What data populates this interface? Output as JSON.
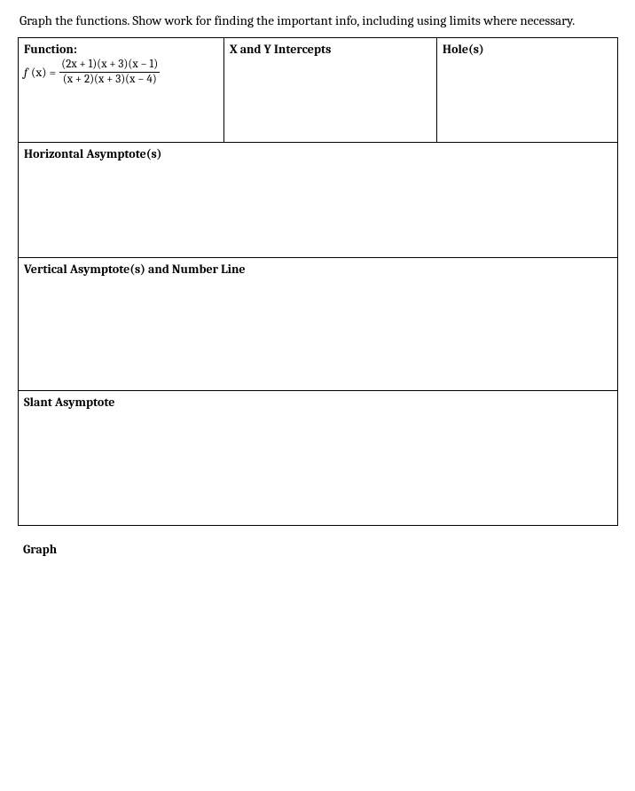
{
  "instruction": "Graph the functions. Show work for finding the important info, including using limits where necessary.",
  "row1": {
    "function_label": "Function:",
    "fx_prefix_italic": "f",
    "fx_prefix_rest": "(x) =",
    "numerator": "(2x + 1)(x + 3)(x − 1)",
    "denominator": "(x + 2)(x + 3)(x − 4)",
    "intercepts_label": "X and Y Intercepts",
    "holes_label": "Hole(s)"
  },
  "ha_label": "Horizontal Asymptote(s)",
  "va_label": "Vertical Asymptote(s) and Number Line",
  "sa_label": "Slant Asymptote",
  "graph_label": "Graph"
}
